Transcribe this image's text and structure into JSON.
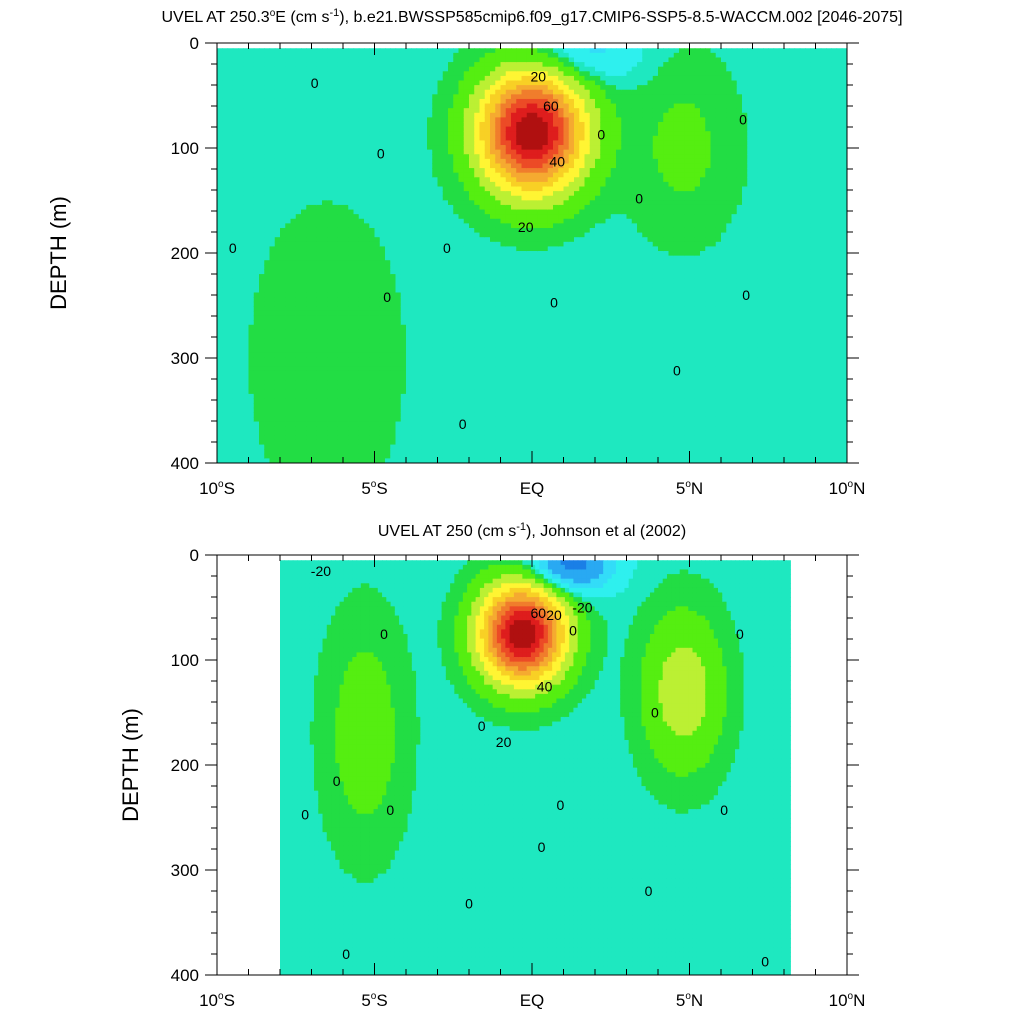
{
  "colors": {
    "c_neg30": "#1a7fe6",
    "c_neg20": "#29a9f2",
    "c_neg10": "#33dcf8",
    "c_neg5": "#2ef0ee",
    "c_zero": "#1ee8c0",
    "c_p5": "#22dd44",
    "c_p10": "#55ee11",
    "c_p20": "#bbf033",
    "c_p30": "#fff533",
    "c_p40": "#f8d025",
    "c_p50": "#f5aa30",
    "c_p60": "#f07d2c",
    "c_p70": "#ec4b26",
    "c_p80": "#de1d1d",
    "c_p90": "#b01010"
  },
  "chart_data": [
    {
      "type": "heatmap",
      "title_main": "UVEL AT 250.3",
      "title_degree": "o",
      "title_east": "E (cm s",
      "title_exp": "-1",
      "title_rest": "), b.e21.BWSSP585cmip6.f09_g17.CMIP6-SSP5-8.5-WACCM.002 [2046-2075]",
      "ylabel": "DEPTH (m)",
      "xlim": [
        -10,
        10
      ],
      "ylim": [
        0,
        400
      ],
      "y_reversed": true,
      "x_ticks": [
        {
          "value": -10,
          "num": "10",
          "hemi": "S"
        },
        {
          "value": -5,
          "num": "5",
          "hemi": "S"
        },
        {
          "value": 0,
          "num": "EQ",
          "hemi": ""
        },
        {
          "value": 5,
          "num": "5",
          "hemi": "N"
        },
        {
          "value": 10,
          "num": "10",
          "hemi": "N"
        }
      ],
      "y_ticks": [
        "0",
        "100",
        "200",
        "300",
        "400"
      ],
      "data_extent_lat": [
        -10,
        10
      ],
      "data_extent_depth": [
        5,
        400
      ],
      "features": [
        {
          "name": "EUC",
          "lat": 0.0,
          "depth": 85,
          "lat_halfwidth": 1.6,
          "depth_halfwidth": 55,
          "peak_cms": 95
        },
        {
          "name": "surface-westward-core",
          "lat": 1.5,
          "depth": 10,
          "lat_halfwidth": 1.8,
          "depth_halfwidth": 30,
          "peak_cms": -12
        },
        {
          "name": "NECC",
          "lat": 4.8,
          "depth": 100,
          "lat_halfwidth": 1.6,
          "depth_halfwidth": 80,
          "peak_cms": 8
        },
        {
          "name": "SSCC",
          "lat": -6.5,
          "depth": 300,
          "lat_halfwidth": 2.5,
          "depth_halfwidth": 150,
          "peak_cms": 4
        }
      ],
      "contour_labels": [
        {
          "text": "0",
          "lat": -6.9,
          "depth": 38
        },
        {
          "text": "20",
          "lat": 0.2,
          "depth": 32
        },
        {
          "text": "60",
          "lat": 0.6,
          "depth": 60
        },
        {
          "text": "40",
          "lat": 0.8,
          "depth": 113
        },
        {
          "text": "20",
          "lat": -0.2,
          "depth": 175
        },
        {
          "text": "0",
          "lat": 2.2,
          "depth": 87
        },
        {
          "text": "0",
          "lat": 6.7,
          "depth": 73
        },
        {
          "text": "0",
          "lat": -4.8,
          "depth": 105
        },
        {
          "text": "0",
          "lat": -9.5,
          "depth": 195
        },
        {
          "text": "0",
          "lat": -2.7,
          "depth": 195
        },
        {
          "text": "0",
          "lat": -4.6,
          "depth": 242
        },
        {
          "text": "0",
          "lat": 0.7,
          "depth": 247
        },
        {
          "text": "0",
          "lat": 3.4,
          "depth": 148
        },
        {
          "text": "0",
          "lat": 6.8,
          "depth": 240
        },
        {
          "text": "0",
          "lat": 4.6,
          "depth": 312
        },
        {
          "text": "0",
          "lat": -2.2,
          "depth": 363
        }
      ]
    },
    {
      "type": "heatmap",
      "title_main": "UVEL AT 250 (cm s",
      "title_exp": "-1",
      "title_rest": "), Johnson et al (2002)",
      "ylabel": "DEPTH (m)",
      "xlim": [
        -10,
        10
      ],
      "ylim": [
        0,
        400
      ],
      "y_reversed": true,
      "x_ticks": [
        {
          "value": -10,
          "num": "10",
          "hemi": "S"
        },
        {
          "value": -5,
          "num": "5",
          "hemi": "S"
        },
        {
          "value": 0,
          "num": "EQ",
          "hemi": ""
        },
        {
          "value": 5,
          "num": "5",
          "hemi": "N"
        },
        {
          "value": 10,
          "num": "10",
          "hemi": "N"
        }
      ],
      "y_ticks": [
        "0",
        "100",
        "200",
        "300",
        "400"
      ],
      "data_extent_lat": [
        -8,
        8.2
      ],
      "data_extent_depth": [
        5,
        400
      ],
      "features": [
        {
          "name": "EUC",
          "lat": -0.3,
          "depth": 75,
          "lat_halfwidth": 1.3,
          "depth_halfwidth": 45,
          "peak_cms": 95
        },
        {
          "name": "surface-westward-core",
          "lat": 1.2,
          "depth": 10,
          "lat_halfwidth": 1.3,
          "depth_halfwidth": 25,
          "peak_cms": -30
        },
        {
          "name": "NECC",
          "lat": 4.8,
          "depth": 130,
          "lat_halfwidth": 1.2,
          "depth_halfwidth": 70,
          "peak_cms": 22
        },
        {
          "name": "SSCC",
          "lat": -5.3,
          "depth": 170,
          "lat_halfwidth": 1.2,
          "depth_halfwidth": 100,
          "peak_cms": 11
        }
      ],
      "contour_labels": [
        {
          "text": "-20",
          "lat": -6.7,
          "depth": 15
        },
        {
          "text": "60",
          "lat": 0.2,
          "depth": 55
        },
        {
          "text": "20",
          "lat": 0.7,
          "depth": 57
        },
        {
          "text": "-20",
          "lat": 1.6,
          "depth": 50
        },
        {
          "text": "0",
          "lat": 1.3,
          "depth": 72
        },
        {
          "text": "40",
          "lat": 0.4,
          "depth": 125
        },
        {
          "text": "20",
          "lat": -0.9,
          "depth": 178
        },
        {
          "text": "0",
          "lat": -1.6,
          "depth": 163
        },
        {
          "text": "0",
          "lat": -4.7,
          "depth": 75
        },
        {
          "text": "0",
          "lat": 6.6,
          "depth": 75
        },
        {
          "text": "0",
          "lat": 3.9,
          "depth": 150
        },
        {
          "text": "0",
          "lat": -6.2,
          "depth": 215
        },
        {
          "text": "0",
          "lat": -4.5,
          "depth": 243
        },
        {
          "text": "0",
          "lat": -7.2,
          "depth": 247
        },
        {
          "text": "0",
          "lat": 0.9,
          "depth": 238
        },
        {
          "text": "0",
          "lat": 0.3,
          "depth": 278
        },
        {
          "text": "0",
          "lat": 6.1,
          "depth": 243
        },
        {
          "text": "0",
          "lat": 3.7,
          "depth": 320
        },
        {
          "text": "0",
          "lat": -2.0,
          "depth": 332
        },
        {
          "text": "0",
          "lat": -5.9,
          "depth": 380
        },
        {
          "text": "0",
          "lat": 7.4,
          "depth": 387
        }
      ]
    }
  ]
}
